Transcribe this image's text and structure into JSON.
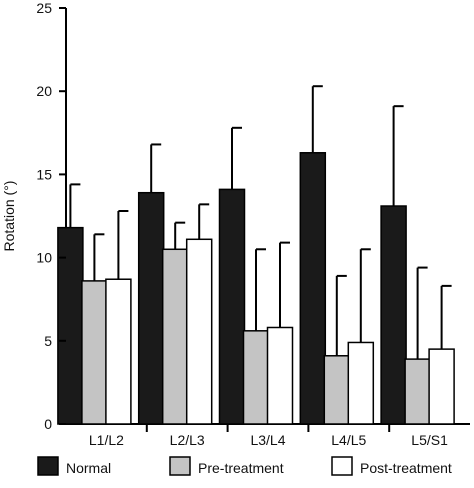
{
  "chart_data": {
    "type": "bar",
    "ylabel": "Rotation (°)",
    "ylim": [
      0,
      25
    ],
    "yticks": [
      0,
      5,
      10,
      15,
      20,
      25
    ],
    "categories": [
      "L1/L2",
      "L2/L3",
      "L3/L4",
      "L4/L5",
      "L5/S1"
    ],
    "series": [
      {
        "name": "Normal",
        "color": "#1a1a1a",
        "values": [
          11.8,
          13.9,
          14.1,
          16.3,
          13.1
        ],
        "errors": [
          2.6,
          2.9,
          3.7,
          4.0,
          6.0
        ]
      },
      {
        "name": "Pre-treatment",
        "color": "#c4c4c4",
        "values": [
          8.6,
          10.5,
          5.6,
          4.1,
          3.9
        ],
        "errors": [
          2.8,
          1.6,
          4.9,
          4.8,
          5.5
        ]
      },
      {
        "name": "Post-treatment",
        "color": "#ffffff",
        "values": [
          8.7,
          11.1,
          5.8,
          4.9,
          4.5
        ],
        "errors": [
          4.1,
          2.1,
          5.1,
          5.6,
          3.8
        ]
      }
    ],
    "legend_position": "bottom",
    "grid": false
  }
}
